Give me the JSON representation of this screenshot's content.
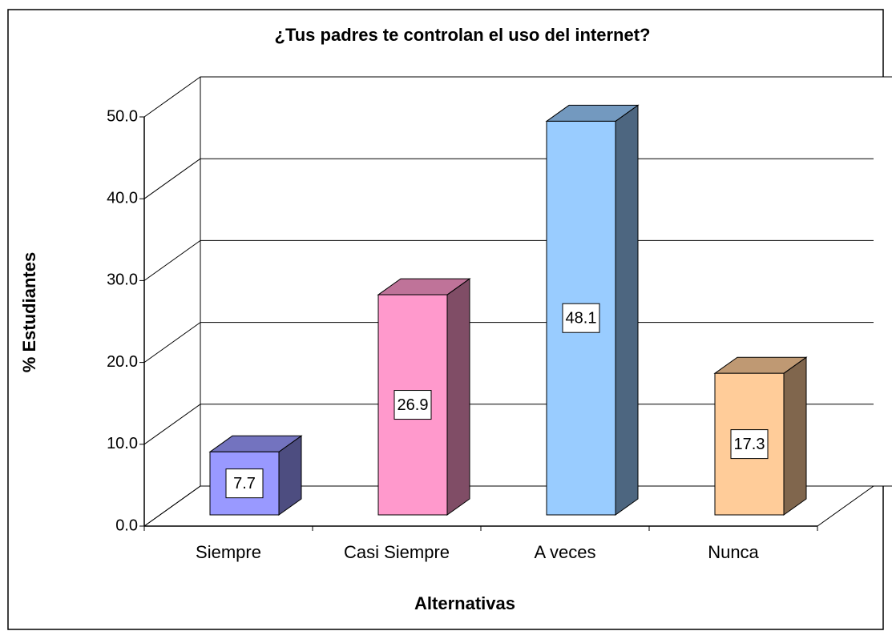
{
  "chart_data": {
    "type": "bar3d",
    "title": "¿Tus padres te controlan el uso del internet?",
    "xlabel": "Alternativas",
    "ylabel": "% Estudiantes",
    "categories": [
      "Siempre",
      "Casi Siempre",
      "A veces",
      "Nunca"
    ],
    "values": [
      7.7,
      26.9,
      48.1,
      17.3
    ],
    "colors": [
      "#9999ff",
      "#ff99cc",
      "#99ccff",
      "#ffcc99"
    ],
    "ylim": [
      0,
      50
    ],
    "yticks": [
      {
        "value": 0,
        "label": "0.0"
      },
      {
        "value": 10,
        "label": "10.0"
      },
      {
        "value": 20,
        "label": "20.0"
      },
      {
        "value": 30,
        "label": "30.0"
      },
      {
        "value": 40,
        "label": "40.0"
      },
      {
        "value": 50,
        "label": "50.0"
      }
    ],
    "grid": true
  }
}
